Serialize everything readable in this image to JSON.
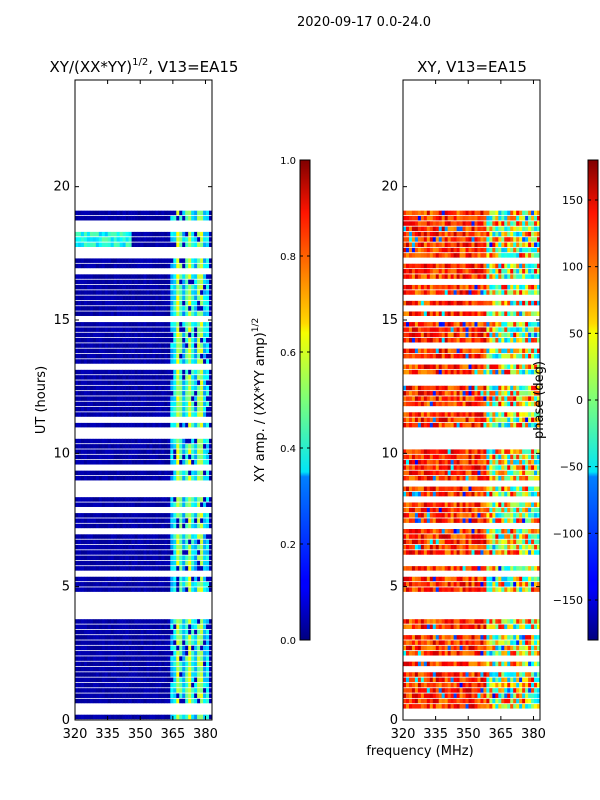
{
  "figure": {
    "suptitle": "2020-09-17 0.0-24.0",
    "xlabel_shared": "frequency (MHz)"
  },
  "chart_data": [
    {
      "type": "heatmap",
      "title": "XY/(XX*YY)",
      "title_exponent": "1/2",
      "title_suffix": ", V13=EA15",
      "ylabel": "UT (hours)",
      "xlim": [
        320,
        383
      ],
      "ylim": [
        0,
        24
      ],
      "xticks": [
        "320",
        "335",
        "350",
        "365",
        "380"
      ],
      "xtick_values": [
        320,
        335,
        350,
        365,
        380
      ],
      "yticks": [
        "0",
        "5",
        "10",
        "15",
        "20"
      ],
      "ytick_values": [
        0,
        5,
        10,
        15,
        20
      ],
      "data_extent_hours": [
        0,
        19.1
      ],
      "gap_hours": [
        [
          3.9,
          4.6
        ]
      ],
      "colorbar": {
        "label": "XY amp. / (XX*YY amp)",
        "label_exponent": "1/2",
        "range": [
          0.0,
          1.0
        ],
        "ticks": [
          "0.0",
          "0.2",
          "0.4",
          "0.6",
          "0.8",
          "1.0"
        ],
        "tick_values": [
          0.0,
          0.2,
          0.4,
          0.6,
          0.8,
          1.0
        ],
        "colormap": "jet"
      }
    },
    {
      "type": "heatmap",
      "title": "XY, V13=EA15",
      "xlim": [
        320,
        383
      ],
      "ylim": [
        0,
        24
      ],
      "xticks": [
        "320",
        "335",
        "350",
        "365",
        "380"
      ],
      "xtick_values": [
        320,
        335,
        350,
        365,
        380
      ],
      "yticks": [
        "0",
        "5",
        "10",
        "15",
        "20"
      ],
      "ytick_values": [
        0,
        5,
        10,
        15,
        20
      ],
      "data_extent_hours": [
        0,
        19.1
      ],
      "gap_hours": [
        [
          3.9,
          4.6
        ]
      ],
      "colorbar": {
        "label": "phase (deg)",
        "range": [
          -180,
          180
        ],
        "ticks": [
          "−150",
          "−100",
          "−50",
          "0",
          "50",
          "100",
          "150"
        ],
        "tick_values": [
          -150,
          -100,
          -50,
          0,
          50,
          100,
          150
        ],
        "colormap": "jet"
      }
    }
  ]
}
